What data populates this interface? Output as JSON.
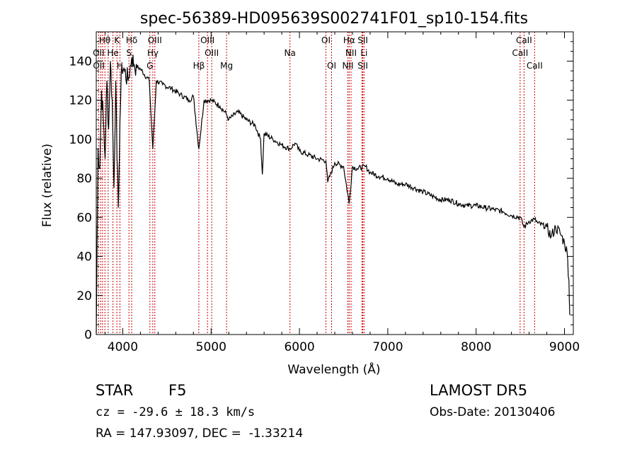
{
  "chart_data": {
    "type": "line",
    "title": "spec-56389-HD095639S002741F01_sp10-154.fits",
    "xlabel": "Wavelength (Å)",
    "ylabel": "Flux (relative)",
    "xlim": [
      3700,
      9100
    ],
    "ylim": [
      0,
      155
    ],
    "xticks": [
      4000,
      5000,
      6000,
      7000,
      8000,
      9000
    ],
    "yticks": [
      0,
      20,
      40,
      60,
      80,
      100,
      120,
      140
    ],
    "grid": false,
    "series": [
      {
        "x": [
          3700,
          3720,
          3740,
          3760,
          3780,
          3800,
          3820,
          3840,
          3860,
          3880,
          3900,
          3920,
          3935,
          3950,
          3968,
          3990,
          4020,
          4060,
          4101,
          4130,
          4200,
          4300,
          4340,
          4380,
          4450,
          4550,
          4650,
          4750,
          4800,
          4861,
          4920,
          5000,
          5100,
          5170,
          5200,
          5300,
          5400,
          5500,
          5560,
          5580,
          5600,
          5700,
          5800,
          5893,
          5950,
          6000,
          6100,
          6200,
          6300,
          6320,
          6400,
          6500,
          6563,
          6600,
          6650,
          6750,
          6800,
          6900,
          7000,
          7100,
          7200,
          7300,
          7400,
          7500,
          7600,
          7700,
          7800,
          7900,
          8000,
          8100,
          8200,
          8300,
          8400,
          8500,
          8542,
          8600,
          8662,
          8700,
          8800,
          8850,
          8900,
          8950,
          9000,
          9030,
          9050,
          9060
        ],
        "y": [
          0,
          95,
          85,
          125,
          110,
          90,
          130,
          105,
          140,
          120,
          75,
          130,
          90,
          65,
          110,
          138,
          135,
          130,
          142,
          138,
          136,
          130,
          95,
          130,
          128,
          126,
          123,
          120,
          122,
          95,
          120,
          120,
          117,
          113,
          110,
          114,
          110,
          107,
          100,
          82,
          103,
          100,
          97,
          95,
          98,
          94,
          92,
          90,
          89,
          78,
          88,
          86,
          67,
          86,
          85,
          86,
          83,
          81,
          80,
          77,
          77,
          75,
          73,
          71,
          69,
          69,
          67,
          66,
          66,
          65,
          64,
          63,
          61,
          60,
          55,
          58,
          59,
          57,
          55,
          50,
          55,
          52,
          47,
          42,
          28,
          10
        ]
      }
    ],
    "lines": [
      {
        "label": "Hθ",
        "x": 3797,
        "row": 0
      },
      {
        "label": "K",
        "x": 3934,
        "row": 0
      },
      {
        "label": "Hδ",
        "x": 4101,
        "row": 0
      },
      {
        "label": "OIII",
        "x": 4363,
        "row": 0
      },
      {
        "label": "OIII",
        "x": 4959,
        "row": 0
      },
      {
        "label": "OI",
        "x": 6300,
        "row": 0
      },
      {
        "label": "Hα",
        "x": 6563,
        "row": 0
      },
      {
        "label": "SII",
        "x": 6717,
        "row": 0
      },
      {
        "label": "CaII",
        "x": 8542,
        "row": 0
      },
      {
        "label": "OII",
        "x": 3727,
        "row": 1
      },
      {
        "label": "He",
        "x": 3889,
        "row": 1
      },
      {
        "label": "S",
        "x": 4070,
        "row": 1
      },
      {
        "label": "Hγ",
        "x": 4340,
        "row": 1
      },
      {
        "label": "OIII",
        "x": 5007,
        "row": 1
      },
      {
        "label": "Na",
        "x": 5893,
        "row": 1
      },
      {
        "label": "NII",
        "x": 6584,
        "row": 1
      },
      {
        "label": "Li",
        "x": 6731,
        "row": 1
      },
      {
        "label": "CaII",
        "x": 8498,
        "row": 1
      },
      {
        "label": "OII",
        "x": 3729,
        "row": 2
      },
      {
        "label": "H",
        "x": 3968,
        "row": 2
      },
      {
        "label": "G",
        "x": 4307,
        "row": 2
      },
      {
        "label": "Hβ",
        "x": 4861,
        "row": 2
      },
      {
        "label": "Mg",
        "x": 5175,
        "row": 2
      },
      {
        "label": "OI",
        "x": 6364,
        "row": 2
      },
      {
        "label": "NII",
        "x": 6548,
        "row": 2
      },
      {
        "label": "SII",
        "x": 6717,
        "row": 2
      },
      {
        "label": "CaII",
        "x": 8662,
        "row": 2
      }
    ],
    "line_marker_x": [
      3727,
      3750,
      3771,
      3798,
      3835,
      3889,
      3934,
      3968,
      4070,
      4101,
      4307,
      4340,
      4363,
      4861,
      4959,
      5007,
      5175,
      5893,
      6300,
      6364,
      6548,
      6563,
      6584,
      6707,
      6717,
      6731,
      8498,
      8542,
      8662
    ],
    "line_marker_color": "#cc0000"
  },
  "info": {
    "class_label": "STAR",
    "subclass": "F5",
    "survey": "LAMOST DR5",
    "cz": "cz = -29.6 ± 18.3 km/s",
    "obs_date": "Obs-Date: 20130406",
    "coords": "RA = 147.93097, DEC =  -1.33214"
  }
}
